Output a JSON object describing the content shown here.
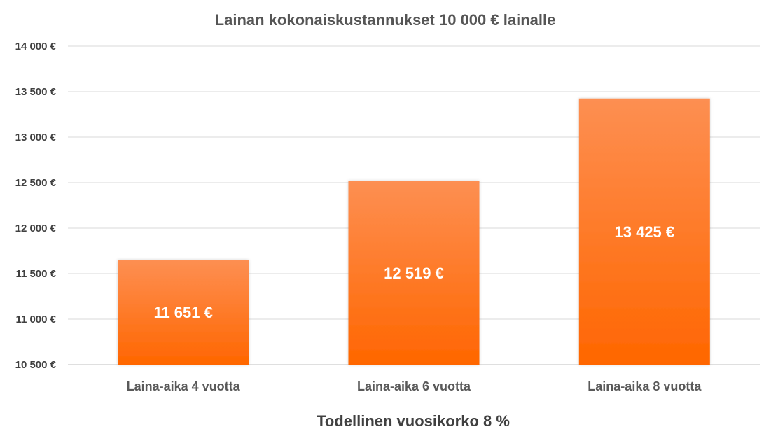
{
  "chart_data": {
    "type": "bar",
    "title": "Lainan kokonaiskustannukset 10 000 € lainalle",
    "xlabel": "Todellinen vuosikorko 8 %",
    "ylabel": "",
    "categories": [
      "Laina-aika 4 vuotta",
      "Laina-aika 6 vuotta",
      "Laina-aika 8 vuotta"
    ],
    "values": [
      11651,
      12519,
      13425
    ],
    "data_labels": [
      "11 651 €",
      "12 519 €",
      "13 425 €"
    ],
    "ylim": [
      10500,
      14000
    ],
    "y_ticks": [
      10500,
      11000,
      11500,
      12000,
      12500,
      13000,
      13500,
      14000
    ],
    "y_tick_labels": [
      "10 500 €",
      "11 000 €",
      "11 500 €",
      "12 000 €",
      "12 500 €",
      "13 000 €",
      "13 500 €",
      "14 000 €"
    ],
    "grid": true,
    "legend": "none",
    "colors": {
      "bar_top": "#fd8f52",
      "bar_bottom": "#ff6600"
    }
  }
}
